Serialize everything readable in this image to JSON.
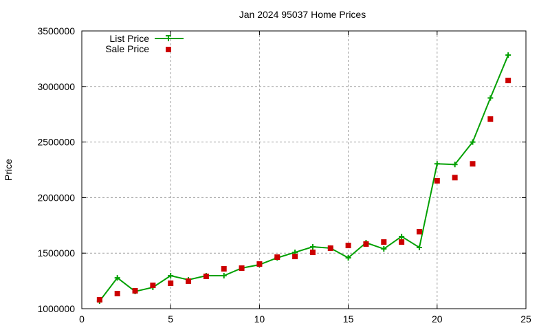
{
  "chart_data": {
    "type": "line",
    "title": "Jan 2024 95037 Home Prices",
    "xlabel": "",
    "ylabel": "Price",
    "xlim": [
      0,
      25
    ],
    "ylim": [
      1000000,
      3500000
    ],
    "x_ticks": [
      "0",
      "5",
      "10",
      "15",
      "20",
      "25"
    ],
    "y_ticks": [
      "1000000",
      "1500000",
      "2000000",
      "2500000",
      "3000000",
      "3500000"
    ],
    "grid": true,
    "legend_position": "top-left",
    "x": [
      1,
      2,
      3,
      4,
      5,
      6,
      7,
      8,
      9,
      10,
      11,
      12,
      13,
      14,
      15,
      16,
      17,
      18,
      19,
      20,
      21,
      22,
      23,
      24
    ],
    "series": [
      {
        "name": "List Price",
        "style": "linespoints",
        "marker": "plus",
        "color": "#00a000",
        "values": [
          1068000,
          1278000,
          1155000,
          1192000,
          1297000,
          1260000,
          1297000,
          1297000,
          1365000,
          1396000,
          1458000,
          1507000,
          1557000,
          1545000,
          1458000,
          1594000,
          1538000,
          1650000,
          1551000,
          2304000,
          2298000,
          2500000,
          2897000,
          3283000
        ]
      },
      {
        "name": "Sale Price",
        "style": "points",
        "marker": "square",
        "color": "#cc0000",
        "values": [
          1080000,
          1136000,
          1161000,
          1210000,
          1229000,
          1248000,
          1291000,
          1359000,
          1365000,
          1402000,
          1464000,
          1470000,
          1507000,
          1545000,
          1569000,
          1582000,
          1600000,
          1600000,
          1693000,
          2151000,
          2180000,
          2304000,
          2707000,
          3054000
        ]
      }
    ]
  }
}
